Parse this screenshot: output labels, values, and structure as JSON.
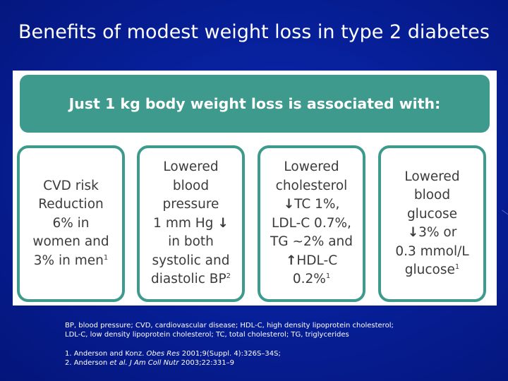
{
  "slide": {
    "title": "Benefits of modest weight loss in type 2 diabetes",
    "banner": "Just 1 kg body weight loss is associated with:"
  },
  "cards": [
    {
      "lines": [
        "CVD risk",
        "Reduction",
        "6% in",
        "women and"
      ],
      "last": "3% in men",
      "ref": "1"
    },
    {
      "line1": "Lowered",
      "line2": "blood",
      "line3": "pressure",
      "line4": "1 mm Hg",
      "arrow": "↓",
      "line5": "in both",
      "line6": "systolic and",
      "line7": "diastolic BP",
      "ref": "2"
    },
    {
      "line1": "Lowered",
      "line2": "cholesterol",
      "arrow_down": "↓",
      "line3": "TC 1%,",
      "line4": "LDL-C 0.7%,",
      "line5": "TG ~2% and",
      "arrow_up": "↑",
      "line6": "HDL-C",
      "line7": "0.2%",
      "ref": "1"
    },
    {
      "line1": "Lowered",
      "line2": "blood",
      "line3": "glucose",
      "arrow": "↓",
      "line4": "3% or",
      "line5": "0.3 mmol/L",
      "line6": "glucose",
      "ref": "1"
    }
  ],
  "footnotes": {
    "abbrev1": "BP, blood pressure; CVD, cardiovascular disease; HDL-C, high density lipoprotein cholesterol;",
    "abbrev2": "LDL-C, low density lipoprotein cholesterol; TC, total cholesterol; TG, triglycerides",
    "ref1": {
      "prefix": "1. Anderson and Konz. ",
      "journal": "Obes Res",
      "suffix": " 2001;9(Suppl. 4):326S–34S;"
    },
    "ref2": {
      "prefix": "2. Anderson ",
      "etal": "et al.",
      "journal": " J Am Coll Nutr",
      "suffix": " 2003;22:331–9"
    }
  },
  "colors": {
    "background": "#061b8c",
    "accent": "#3e9a8c",
    "card_text": "#3b3b3b"
  }
}
